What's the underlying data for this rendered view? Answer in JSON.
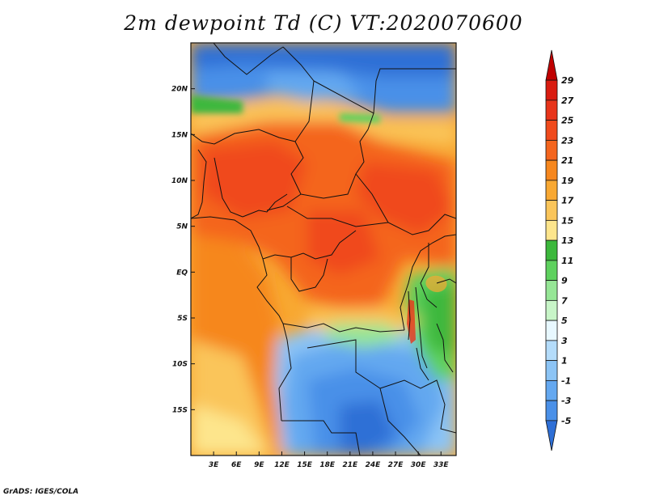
{
  "title": "2m dewpoint Td (C) VT:2020070600",
  "credit": "GrADS: IGES/COLA",
  "map": {
    "lat_labels": [
      "20N",
      "15N",
      "10N",
      "5N",
      "EQ",
      "5S",
      "10S",
      "15S"
    ],
    "lon_labels": [
      "3E",
      "6E",
      "9E",
      "12E",
      "15E",
      "18E",
      "21E",
      "24E",
      "27E",
      "30E",
      "33E"
    ],
    "lat_values": [
      20,
      15,
      10,
      5,
      0,
      -5,
      -10,
      -15
    ],
    "lon_values": [
      3,
      6,
      9,
      12,
      15,
      18,
      21,
      24,
      27,
      30,
      33
    ],
    "lon_range": [
      0,
      35
    ],
    "lat_range": [
      -20,
      25
    ]
  },
  "colorbar": {
    "labels": [
      "29",
      "27",
      "25",
      "23",
      "21",
      "19",
      "17",
      "15",
      "13",
      "11",
      "9",
      "7",
      "5",
      "3",
      "1",
      "-1",
      "-3",
      "-5"
    ],
    "colors": [
      "#c00000",
      "#d91c10",
      "#e8341a",
      "#f04a1c",
      "#f4651e",
      "#f6871e",
      "#f8a832",
      "#fac55a",
      "#fde58c",
      "#3cb83c",
      "#5ed15e",
      "#96e696",
      "#c8f5c8",
      "#e8f8ff",
      "#b4dcfa",
      "#8cc4f5",
      "#64a8f0",
      "#4a90e8",
      "#2e6fd6"
    ]
  }
}
